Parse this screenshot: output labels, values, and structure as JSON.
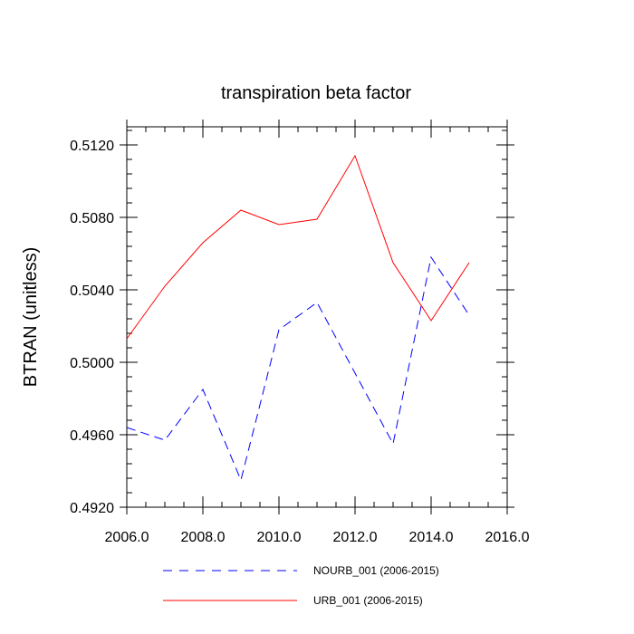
{
  "chart_data": {
    "type": "line",
    "title": "transpiration beta factor",
    "xlabel": "",
    "ylabel": "BTRAN  (unitless)",
    "xlim": [
      2006.0,
      2016.0
    ],
    "ylim": [
      0.492,
      0.513
    ],
    "x_ticks": [
      "2006.0",
      "2008.0",
      "2010.0",
      "2012.0",
      "2014.0",
      "2016.0"
    ],
    "x_tick_values": [
      2006,
      2008,
      2010,
      2012,
      2014,
      2016
    ],
    "y_ticks": [
      "0.4920",
      "0.4960",
      "0.5000",
      "0.5040",
      "0.5080",
      "0.5120"
    ],
    "y_tick_values": [
      0.492,
      0.496,
      0.5,
      0.504,
      0.508,
      0.512
    ],
    "grid": false,
    "legend_position": "bottom",
    "x": [
      2006,
      2007,
      2008,
      2009,
      2010,
      2011,
      2012,
      2013,
      2014,
      2015
    ],
    "series": [
      {
        "name": "NOURB_001 (2006-2015)",
        "color": "#0000ff",
        "dash": "dashed",
        "values": [
          0.4964,
          0.4957,
          0.4985,
          0.4935,
          0.5018,
          0.5033,
          0.4994,
          0.4955,
          0.5058,
          0.5026
        ]
      },
      {
        "name": "URB_001 (2006-2015)",
        "color": "#ff0000",
        "dash": "solid",
        "values": [
          0.5013,
          0.5042,
          0.5066,
          0.5084,
          0.5076,
          0.5079,
          0.5114,
          0.5055,
          0.5023,
          0.5055
        ]
      }
    ]
  }
}
